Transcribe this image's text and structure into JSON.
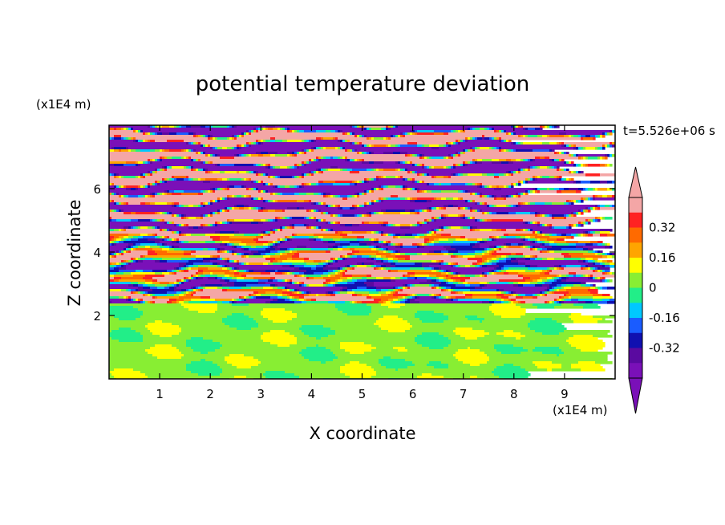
{
  "chart_data": {
    "type": "heatmap",
    "title": "potential temperature deviation",
    "xlabel": "X coordinate",
    "ylabel": "Z coordinate",
    "x_unit": "(x1E4 m)",
    "y_unit": "(x1E4 m)",
    "time_label": "t=5.526e+06 s",
    "xlim": [
      0,
      10
    ],
    "ylim": [
      0,
      8
    ],
    "x_ticks": [
      1,
      2,
      3,
      4,
      5,
      6,
      7,
      8,
      9
    ],
    "y_ticks": [
      2,
      4,
      6
    ],
    "colorbar": {
      "levels": [
        -0.48,
        -0.4,
        -0.32,
        -0.24,
        -0.16,
        -0.08,
        0,
        0.08,
        0.16,
        0.24,
        0.32,
        0.4,
        0.48
      ],
      "tick_labels": [
        "0.32",
        "0.16",
        "0",
        "-0.16",
        "-0.32"
      ],
      "tick_values": [
        0.32,
        0.16,
        0,
        -0.16,
        -0.32
      ],
      "colors_top_to_bottom": [
        "#f4a6a6",
        "#ff2222",
        "#ff6a00",
        "#ffa500",
        "#ffff00",
        "#88ee33",
        "#22ee88",
        "#00c8ff",
        "#1a5cff",
        "#1010b0",
        "#5a0aa0",
        "#7a10b8"
      ],
      "upper_extension_color": "#f4a6a6",
      "lower_extension_color": "#7a10b8"
    },
    "field_description": {
      "lower_region": {
        "z_range": [
          0,
          2.4
        ],
        "dominant_values": [
          0,
          0.08
        ]
      },
      "upper_region": {
        "z_range": [
          2.4,
          8
        ],
        "pattern": "alternating horizontal layers",
        "dominant_values": [
          -0.48,
          0.48
        ]
      }
    }
  }
}
